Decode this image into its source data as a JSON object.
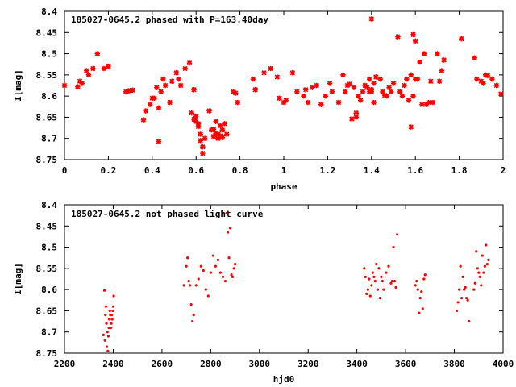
{
  "chart_data": [
    {
      "type": "scatter",
      "title": "185027-0645.2 phased with P=163.40day",
      "xlabel": "phase",
      "ylabel": "I[mag]",
      "xlim": [
        0,
        2
      ],
      "ylim": [
        8.75,
        8.4
      ],
      "y_inverted": true,
      "grid": false,
      "marker": "star",
      "color": "#ff0000",
      "xticks": [
        "0",
        "0.2",
        "0.4",
        "0.6",
        "0.8",
        "1",
        "1.2",
        "1.4",
        "1.6",
        "1.8",
        "2"
      ],
      "yticks": [
        "8.4",
        "8.45",
        "8.5",
        "8.55",
        "8.6",
        "8.65",
        "8.7",
        "8.75"
      ],
      "series": [
        {
          "x": [
            0.0,
            0.06,
            0.07,
            0.08,
            0.1,
            0.11,
            0.13,
            0.15,
            0.18,
            0.2,
            0.28,
            0.29,
            0.3,
            0.31,
            0.36,
            0.37,
            0.39,
            0.4,
            0.41,
            0.42,
            0.43,
            0.43,
            0.44,
            0.45,
            0.46,
            0.48,
            0.49,
            0.51,
            0.52,
            0.53,
            0.55,
            0.57,
            0.58,
            0.59,
            0.59,
            0.6,
            0.6,
            0.61,
            0.61,
            0.62,
            0.62,
            0.63,
            0.63,
            0.64,
            0.66,
            0.67,
            0.68,
            0.68,
            0.69,
            0.69,
            0.7,
            0.7,
            0.71,
            0.71,
            0.72,
            0.72,
            0.73,
            0.74,
            0.77,
            0.78,
            0.79,
            0.86,
            0.87,
            0.91,
            0.94,
            0.97,
            0.98,
            1.0,
            1.01,
            1.04,
            1.06,
            1.09,
            1.1,
            1.11,
            1.13,
            1.15,
            1.17,
            1.19,
            1.21,
            1.22,
            1.25,
            1.27,
            1.28,
            1.29,
            1.3,
            1.31,
            1.32,
            1.33,
            1.33,
            1.34,
            1.35,
            1.36,
            1.37,
            1.38,
            1.39,
            1.39,
            1.4,
            1.4,
            1.4,
            1.41,
            1.41,
            1.42,
            1.44,
            1.45,
            1.46,
            1.47,
            1.48,
            1.49,
            1.5,
            1.52,
            1.53,
            1.54,
            1.55,
            1.56,
            1.57,
            1.58,
            1.58,
            1.59,
            1.59,
            1.6,
            1.6,
            1.61,
            1.62,
            1.63,
            1.64,
            1.65,
            1.66,
            1.67,
            1.68,
            1.7,
            1.71,
            1.72,
            1.73,
            1.81,
            1.87,
            1.88,
            1.9,
            1.91,
            1.92,
            1.93,
            1.95,
            1.97,
            1.99
          ],
          "y": [
            8.575,
            8.578,
            8.565,
            8.57,
            8.54,
            8.55,
            8.535,
            8.5,
            8.535,
            8.53,
            8.59,
            8.588,
            8.587,
            8.586,
            8.656,
            8.635,
            8.62,
            8.605,
            8.605,
            8.58,
            8.628,
            8.707,
            8.59,
            8.56,
            8.575,
            8.615,
            8.565,
            8.545,
            8.56,
            8.575,
            8.535,
            8.522,
            8.64,
            8.585,
            8.655,
            8.648,
            8.66,
            8.672,
            8.665,
            8.705,
            8.69,
            8.72,
            8.735,
            8.7,
            8.635,
            8.68,
            8.678,
            8.695,
            8.66,
            8.688,
            8.69,
            8.7,
            8.67,
            8.694,
            8.698,
            8.68,
            8.665,
            8.69,
            8.59,
            8.593,
            8.615,
            8.56,
            8.585,
            8.545,
            8.535,
            8.555,
            8.605,
            8.615,
            8.61,
            8.545,
            8.59,
            8.6,
            8.585,
            8.615,
            8.58,
            8.575,
            8.62,
            8.6,
            8.57,
            8.59,
            8.615,
            8.55,
            8.59,
            8.575,
            8.572,
            8.654,
            8.58,
            8.65,
            8.64,
            8.6,
            8.61,
            8.59,
            8.575,
            8.58,
            8.59,
            8.56,
            8.585,
            8.59,
            8.418,
            8.57,
            8.615,
            8.555,
            8.56,
            8.59,
            8.598,
            8.6,
            8.58,
            8.59,
            8.57,
            8.46,
            8.59,
            8.6,
            8.575,
            8.56,
            8.61,
            8.673,
            8.55,
            8.455,
            8.6,
            8.47,
            8.56,
            8.56,
            8.52,
            8.62,
            8.5,
            8.62,
            8.615,
            8.565,
            8.615,
            8.5,
            8.565,
            8.54,
            8.515,
            8.465,
            8.51,
            8.56,
            8.565,
            8.57,
            8.55,
            8.552,
            8.56,
            8.575,
            8.595
          ]
        }
      ]
    },
    {
      "type": "scatter",
      "title": "185027-0645.2 not phased light curve",
      "xlabel": "hjd0",
      "ylabel": "I[mag]",
      "xlim": [
        2200,
        4000
      ],
      "ylim": [
        8.75,
        8.4
      ],
      "y_inverted": true,
      "grid": false,
      "marker": "dot",
      "color": "#ff0000",
      "xticks": [
        "2200",
        "2400",
        "2600",
        "2800",
        "3000",
        "3200",
        "3400",
        "3600",
        "3800",
        "4000"
      ],
      "yticks": [
        "8.4",
        "8.45",
        "8.5",
        "8.55",
        "8.6",
        "8.65",
        "8.7",
        "8.75"
      ],
      "series": [
        {
          "x": [
            2360,
            2364,
            2366,
            2368,
            2370,
            2372,
            2374,
            2376,
            2378,
            2380,
            2382,
            2384,
            2386,
            2388,
            2390,
            2392,
            2394,
            2396,
            2398,
            2400,
            2402,
            2690,
            2700,
            2705,
            2710,
            2715,
            2720,
            2725,
            2730,
            2740,
            2750,
            2760,
            2770,
            2780,
            2790,
            2800,
            2810,
            2820,
            2830,
            2840,
            2850,
            2860,
            2865,
            2870,
            2875,
            2880,
            2885,
            2890,
            2895,
            2900,
            3430,
            3435,
            3440,
            3445,
            3450,
            3455,
            3460,
            3465,
            3470,
            3475,
            3480,
            3485,
            3490,
            3495,
            3500,
            3505,
            3510,
            3520,
            3530,
            3540,
            3545,
            3550,
            3555,
            3560,
            3565,
            3640,
            3645,
            3650,
            3655,
            3660,
            3665,
            3670,
            3675,
            3680,
            3810,
            3815,
            3820,
            3825,
            3830,
            3835,
            3840,
            3845,
            3850,
            3855,
            3860,
            3880,
            3885,
            3890,
            3895,
            3900,
            3905,
            3910,
            3915,
            3920,
            3925,
            3930,
            3935,
            3940
          ],
          "y": [
            8.707,
            8.602,
            8.72,
            8.66,
            8.64,
            8.68,
            8.735,
            8.7,
            8.745,
            8.71,
            8.69,
            8.67,
            8.65,
            8.66,
            8.69,
            8.68,
            8.66,
            8.67,
            8.65,
            8.64,
            8.615,
            8.59,
            8.545,
            8.525,
            8.58,
            8.59,
            8.635,
            8.675,
            8.66,
            8.59,
            8.575,
            8.545,
            8.555,
            8.6,
            8.615,
            8.56,
            8.52,
            8.545,
            8.53,
            8.56,
            8.57,
            8.58,
            8.42,
            8.465,
            8.525,
            8.455,
            8.565,
            8.57,
            8.55,
            8.54,
            8.55,
            8.57,
            8.61,
            8.6,
            8.575,
            8.615,
            8.59,
            8.56,
            8.57,
            8.58,
            8.54,
            8.6,
            8.55,
            8.62,
            8.57,
            8.58,
            8.6,
            8.56,
            8.545,
            8.585,
            8.58,
            8.5,
            8.58,
            8.595,
            8.47,
            8.59,
            8.58,
            8.6,
            8.655,
            8.62,
            8.605,
            8.645,
            8.575,
            8.565,
            8.65,
            8.63,
            8.6,
            8.545,
            8.62,
            8.57,
            8.6,
            8.595,
            8.62,
            8.625,
            8.675,
            8.6,
            8.585,
            8.51,
            8.55,
            8.56,
            8.57,
            8.59,
            8.52,
            8.56,
            8.545,
            8.495,
            8.54,
            8.53
          ]
        }
      ]
    }
  ]
}
